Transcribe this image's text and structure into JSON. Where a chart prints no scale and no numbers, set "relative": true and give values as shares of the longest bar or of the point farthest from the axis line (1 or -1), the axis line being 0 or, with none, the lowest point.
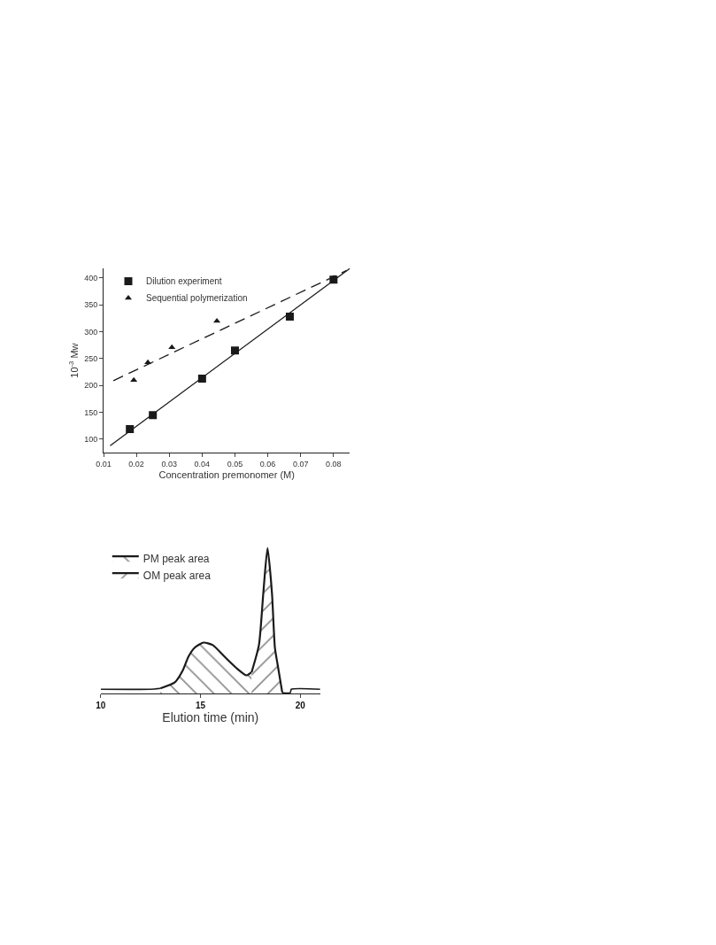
{
  "chart_data": [
    {
      "type": "scatter",
      "xlabel": "Concentration premonomer (M)",
      "ylabel": "10$^{-3}$ Mw",
      "xlim": [
        0.01,
        0.085
      ],
      "ylim": [
        75,
        418
      ],
      "xticks": [
        {
          "value": 0.01,
          "label": "0.01"
        },
        {
          "value": 0.02,
          "label": "0.02"
        },
        {
          "value": 0.03,
          "label": "0.03"
        },
        {
          "value": 0.04,
          "label": "0.04"
        },
        {
          "value": 0.05,
          "label": "0.05"
        },
        {
          "value": 0.06,
          "label": "0.06"
        },
        {
          "value": 0.07,
          "label": "0.07"
        },
        {
          "value": 0.08,
          "label": "0.08"
        }
      ],
      "yticks": [
        100,
        150,
        200,
        250,
        300,
        350,
        400
      ],
      "legend": "top left",
      "series": [
        {
          "name": "Dilution experiment",
          "color": "#1a1a1a",
          "marker": "square",
          "x": [
            0.018,
            0.025,
            0.04,
            0.05,
            0.0667,
            0.08
          ],
          "values": [
            119,
            145,
            213,
            265,
            328,
            397
          ]
        },
        {
          "name": "Sequential polymerization",
          "color": "#1a1a1a",
          "marker": "triangle",
          "x": [
            0.0192,
            0.0235,
            0.0308,
            0.0445,
            0.08
          ],
          "values": [
            210,
            243,
            271,
            320,
            400
          ]
        },
        {
          "type": "line",
          "color": "#1a1a1a",
          "line_style": "solid",
          "x": [
            0.012,
            0.085
          ],
          "values": [
            88,
            418
          ]
        },
        {
          "type": "line",
          "color": "#1a1a1a",
          "line_style": "dashed",
          "x": [
            0.013,
            0.084
          ],
          "values": [
            209,
            414
          ]
        }
      ]
    },
    {
      "type": "area",
      "relative": true,
      "xlabel": "Elution time (min)",
      "xlim": [
        10,
        21
      ],
      "xticks": [
        10,
        15,
        20
      ],
      "legend": "top left",
      "series": [
        {
          "type": "line",
          "color": "#1a1a1a",
          "x": [
            10,
            12.5,
            12.99
          ],
          "values": [
            0.03,
            0.03,
            0.036
          ]
        },
        {
          "name": "PM peak area",
          "color": "#1a1a1a",
          "x": [
            12.99,
            13.7,
            14.1,
            14.4,
            14.7,
            15.15,
            15.6,
            16.2,
            16.8,
            17.3,
            17.56
          ],
          "values": [
            0.036,
            0.076,
            0.156,
            0.255,
            0.315,
            0.351,
            0.335,
            0.255,
            0.176,
            0.126,
            0.146
          ]
        },
        {
          "name": "OM peak area",
          "color": "#1a1a1a",
          "x": [
            17.56,
            17.93,
            18.15,
            18.36,
            18.58,
            18.73,
            18.87,
            19.1
          ],
          "values": [
            0.146,
            0.335,
            0.695,
            1,
            0.695,
            0.315,
            0.196,
            0.006
          ]
        },
        {
          "type": "line",
          "color": "#1a1a1a",
          "x": [
            19.1,
            19.5,
            19.55,
            21
          ],
          "values": [
            0.006,
            0.006,
            0.03,
            0.03
          ]
        }
      ]
    }
  ]
}
